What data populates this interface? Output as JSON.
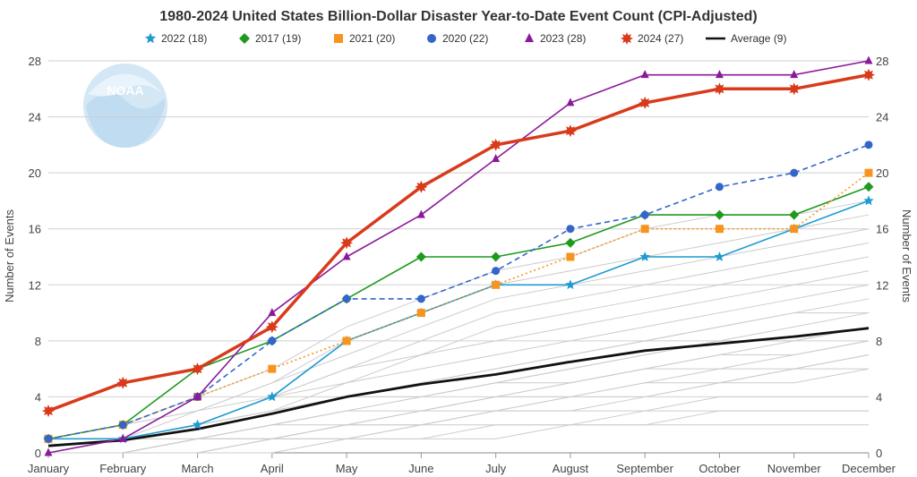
{
  "chart_data": {
    "type": "line",
    "title": "1980-2024 United States Billion-Dollar Disaster Year-to-Date Event Count (CPI-Adjusted)",
    "ylabel": "Number of Events",
    "ylabel_right": "Number of Events",
    "categories": [
      "January",
      "February",
      "March",
      "April",
      "May",
      "June",
      "July",
      "August",
      "September",
      "October",
      "November",
      "December"
    ],
    "ylim": [
      0,
      28
    ],
    "yticks": [
      0,
      4,
      8,
      12,
      16,
      20,
      24,
      28
    ],
    "grid": true,
    "legend_position": "top",
    "series": [
      {
        "name": "2022 (18)",
        "color": "#1f9bd1",
        "marker": "star",
        "dash": "solid",
        "width": 1.6,
        "values": [
          1,
          1,
          2,
          4,
          8,
          10,
          12,
          12,
          14,
          14,
          16,
          18
        ]
      },
      {
        "name": "2017 (19)",
        "color": "#1e9a1e",
        "marker": "diamond",
        "dash": "solid",
        "width": 1.6,
        "values": [
          1,
          2,
          6,
          8,
          11,
          14,
          14,
          15,
          17,
          17,
          17,
          19
        ]
      },
      {
        "name": "2021 (20)",
        "color": "#f7941d",
        "marker": "square",
        "dash": "dotted",
        "width": 1.6,
        "values": [
          1,
          2,
          4,
          6,
          8,
          10,
          12,
          14,
          16,
          16,
          16,
          20
        ]
      },
      {
        "name": "2020 (22)",
        "color": "#3465c8",
        "marker": "circle",
        "dash": "dashed",
        "width": 1.6,
        "values": [
          1,
          2,
          4,
          8,
          11,
          11,
          13,
          16,
          17,
          19,
          20,
          22
        ]
      },
      {
        "name": "2023 (28)",
        "color": "#8b1a9a",
        "marker": "triangle",
        "dash": "solid",
        "width": 1.6,
        "values": [
          0,
          1,
          4,
          10,
          14,
          17,
          21,
          25,
          27,
          27,
          27,
          28
        ]
      },
      {
        "name": "2024 (27)",
        "color": "#d93a1a",
        "marker": "burst",
        "dash": "solid",
        "width": 3.5,
        "values": [
          3,
          5,
          6,
          9,
          15,
          19,
          22,
          23,
          25,
          26,
          26,
          27
        ]
      },
      {
        "name": "Average (9)",
        "color": "#111111",
        "marker": "none",
        "dash": "solid",
        "width": 2.8,
        "values": [
          0.5,
          0.9,
          1.7,
          2.8,
          4.0,
          4.9,
          5.6,
          6.5,
          7.3,
          7.8,
          8.3,
          8.9
        ]
      }
    ],
    "background_years": [
      [
        0,
        0,
        0,
        1,
        1,
        2,
        3,
        3,
        4,
        5,
        5,
        6
      ],
      [
        0,
        0,
        1,
        1,
        2,
        2,
        3,
        4,
        4,
        5,
        6,
        7
      ],
      [
        0,
        1,
        1,
        2,
        2,
        3,
        3,
        4,
        5,
        5,
        6,
        6
      ],
      [
        0,
        0,
        0,
        1,
        2,
        3,
        4,
        4,
        5,
        6,
        6,
        7
      ],
      [
        0,
        0,
        1,
        2,
        3,
        3,
        4,
        5,
        6,
        7,
        7,
        8
      ],
      [
        0,
        1,
        1,
        1,
        2,
        3,
        4,
        5,
        6,
        6,
        7,
        8
      ],
      [
        0,
        0,
        1,
        2,
        3,
        4,
        5,
        5,
        6,
        7,
        8,
        9
      ],
      [
        0,
        1,
        2,
        3,
        4,
        4,
        5,
        6,
        7,
        8,
        8,
        9
      ],
      [
        0,
        0,
        1,
        2,
        3,
        4,
        5,
        6,
        7,
        8,
        9,
        10
      ],
      [
        0,
        1,
        2,
        3,
        4,
        5,
        6,
        7,
        8,
        9,
        10,
        11
      ],
      [
        0,
        1,
        2,
        3,
        4,
        5,
        6,
        7,
        8,
        9,
        10,
        10
      ],
      [
        1,
        1,
        2,
        3,
        5,
        6,
        7,
        8,
        9,
        10,
        11,
        12
      ],
      [
        0,
        1,
        2,
        4,
        5,
        7,
        8,
        9,
        10,
        11,
        12,
        13
      ],
      [
        1,
        2,
        3,
        4,
        6,
        7,
        9,
        10,
        11,
        12,
        13,
        14
      ],
      [
        0,
        1,
        2,
        4,
        6,
        8,
        10,
        11,
        12,
        13,
        14,
        15
      ],
      [
        1,
        2,
        3,
        5,
        7,
        9,
        11,
        12,
        13,
        14,
        15,
        16
      ],
      [
        0,
        1,
        3,
        5,
        8,
        10,
        12,
        13,
        14,
        15,
        16,
        17
      ],
      [
        1,
        2,
        4,
        6,
        9,
        11,
        13,
        14,
        16,
        17,
        17,
        18
      ],
      [
        0,
        0,
        1,
        1,
        2,
        2,
        3,
        3,
        3,
        4,
        4,
        4
      ],
      [
        0,
        0,
        0,
        1,
        1,
        1,
        2,
        2,
        3,
        3,
        3,
        3
      ],
      [
        0,
        0,
        1,
        1,
        1,
        2,
        2,
        2,
        2,
        3,
        3,
        3
      ],
      [
        0,
        0,
        0,
        0,
        1,
        1,
        1,
        2,
        2,
        2,
        2,
        2
      ]
    ]
  },
  "logo": {
    "text": "NOAA",
    "name": "noaa-logo"
  }
}
